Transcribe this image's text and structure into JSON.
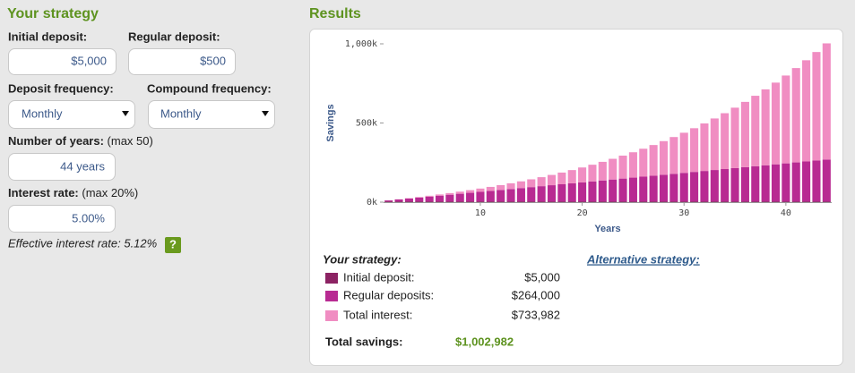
{
  "form": {
    "title": "Your strategy",
    "initial_deposit": {
      "label": "Initial deposit:",
      "value": "$5,000"
    },
    "regular_deposit": {
      "label": "Regular deposit:",
      "value": "$500"
    },
    "deposit_frequency": {
      "label": "Deposit frequency:",
      "value": "Monthly"
    },
    "compound_frequency": {
      "label": "Compound frequency:",
      "value": "Monthly"
    },
    "years": {
      "label": "Number of years:",
      "note": "(max 50)",
      "value": "44 years"
    },
    "interest_rate": {
      "label": "Interest rate:",
      "note": "(max 20%)",
      "value": "5.00%"
    },
    "effective_rate": "Effective interest rate: 5.12%",
    "help": "?"
  },
  "results": {
    "title": "Results",
    "summary_title": "Your strategy:",
    "summary_values": [
      "$5,000",
      "$264,000",
      "$733,982"
    ],
    "total_label": "Total savings:",
    "total": "$1,002,982",
    "alternative": "Alternative strategy:"
  },
  "chart_data": {
    "type": "bar",
    "stacked": true,
    "xlabel": "Years",
    "ylabel": "Savings",
    "x": [
      1,
      2,
      3,
      4,
      5,
      6,
      7,
      8,
      9,
      10,
      11,
      12,
      13,
      14,
      15,
      16,
      17,
      18,
      19,
      20,
      21,
      22,
      23,
      24,
      25,
      26,
      27,
      28,
      29,
      30,
      31,
      32,
      33,
      34,
      35,
      36,
      37,
      38,
      39,
      40,
      41,
      42,
      43,
      44
    ],
    "xlim": [
      0.5,
      44.5
    ],
    "xticks": [
      10,
      20,
      30,
      40
    ],
    "ylim": [
      0,
      1000000
    ],
    "yticks": [
      {
        "value": 0,
        "label": "0k"
      },
      {
        "value": 500000,
        "label": "500k"
      },
      {
        "value": 1000000,
        "label": "1,000k"
      }
    ],
    "series": [
      {
        "name": "Initial deposit:",
        "color": "#8c2363",
        "values": [
          5000,
          5000,
          5000,
          5000,
          5000,
          5000,
          5000,
          5000,
          5000,
          5000,
          5000,
          5000,
          5000,
          5000,
          5000,
          5000,
          5000,
          5000,
          5000,
          5000,
          5000,
          5000,
          5000,
          5000,
          5000,
          5000,
          5000,
          5000,
          5000,
          5000,
          5000,
          5000,
          5000,
          5000,
          5000,
          5000,
          5000,
          5000,
          5000,
          5000,
          5000,
          5000,
          5000,
          5000
        ]
      },
      {
        "name": "Regular deposits:",
        "color": "#b82a92",
        "values": [
          6000,
          12000,
          18000,
          24000,
          30000,
          36000,
          42000,
          48000,
          54000,
          60000,
          66000,
          72000,
          78000,
          84000,
          90000,
          96000,
          102000,
          108000,
          114000,
          120000,
          126000,
          132000,
          138000,
          144000,
          150000,
          156000,
          162000,
          168000,
          174000,
          180000,
          186000,
          192000,
          198000,
          204000,
          210000,
          216000,
          222000,
          228000,
          234000,
          240000,
          246000,
          252000,
          258000,
          264000
        ]
      },
      {
        "name": "Total interest:",
        "color": "#f08dc2",
        "values": [
          395,
          1117,
          2184,
          3612,
          5420,
          7627,
          10255,
          13324,
          16856,
          20876,
          25410,
          30482,
          36121,
          42355,
          49215,
          56733,
          64943,
          73879,
          83579,
          94083,
          105430,
          117665,
          130834,
          144983,
          160163,
          176426,
          193829,
          212429,
          232288,
          253469,
          276041,
          300075,
          325645,
          352831,
          381715,
          412383,
          444928,
          479444,
          516033,
          554800,
          595858,
          639324,
          685320,
          733982
        ]
      }
    ]
  }
}
